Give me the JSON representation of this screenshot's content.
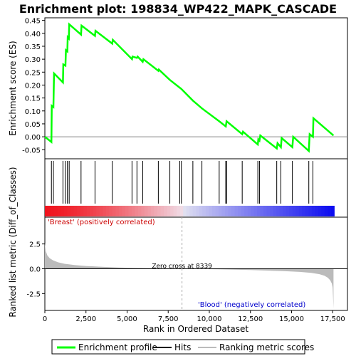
{
  "chart_data": {
    "type": "line",
    "title": "Enrichment plot: 198834_WP422_MAPK_CASCADE",
    "top_panel": {
      "ylabel": "Enrichment score (ES)",
      "yticks": [
        "0.45",
        "0.40",
        "0.35",
        "0.30",
        "0.25",
        "0.20",
        "0.15",
        "0.10",
        "0.05",
        "0.00",
        "-0.05"
      ],
      "ylim": [
        -0.085,
        0.46
      ],
      "series": [
        {
          "name": "Enrichment profile",
          "color": "#00ff00",
          "points": [
            [
              0,
              0.0
            ],
            [
              400,
              -0.02
            ],
            [
              420,
              0.12
            ],
            [
              520,
              0.115
            ],
            [
              560,
              0.245
            ],
            [
              1100,
              0.21
            ],
            [
              1120,
              0.28
            ],
            [
              1250,
              0.275
            ],
            [
              1280,
              0.335
            ],
            [
              1370,
              0.33
            ],
            [
              1390,
              0.385
            ],
            [
              1460,
              0.38
            ],
            [
              1480,
              0.435
            ],
            [
              2200,
              0.395
            ],
            [
              2230,
              0.43
            ],
            [
              3050,
              0.39
            ],
            [
              3080,
              0.41
            ],
            [
              4100,
              0.36
            ],
            [
              4130,
              0.375
            ],
            [
              5300,
              0.3
            ],
            [
              5330,
              0.31
            ],
            [
              5600,
              0.305
            ],
            [
              5640,
              0.31
            ],
            [
              5950,
              0.29
            ],
            [
              5990,
              0.3
            ],
            [
              6900,
              0.255
            ],
            [
              6930,
              0.26
            ],
            [
              7600,
              0.22
            ],
            [
              8200,
              0.19
            ],
            [
              8300,
              0.185
            ],
            [
              9000,
              0.14
            ],
            [
              9550,
              0.11
            ],
            [
              10600,
              0.06
            ],
            [
              11000,
              0.04
            ],
            [
              11050,
              0.06
            ],
            [
              12000,
              0.01
            ],
            [
              12050,
              0.02
            ],
            [
              12950,
              -0.03
            ],
            [
              12980,
              -0.01
            ],
            [
              13050,
              -0.015
            ],
            [
              13100,
              0.005
            ],
            [
              14100,
              -0.045
            ],
            [
              14150,
              -0.025
            ],
            [
              14350,
              -0.04
            ],
            [
              14400,
              -0.005
            ],
            [
              15050,
              -0.04
            ],
            [
              15100,
              0.0
            ],
            [
              16050,
              -0.055
            ],
            [
              16100,
              0.01
            ],
            [
              16300,
              0.0
            ],
            [
              16330,
              0.072
            ],
            [
              17550,
              0.005
            ]
          ]
        }
      ]
    },
    "hits_panel": {
      "hit_positions": [
        400,
        520,
        1100,
        1250,
        1370,
        1480,
        2200,
        3050,
        4100,
        5300,
        5600,
        5950,
        6900,
        7600,
        8200,
        8300,
        9000,
        9550,
        10600,
        11000,
        11050,
        12000,
        12950,
        13050,
        14100,
        14350,
        15050,
        16050,
        16300
      ]
    },
    "bottom_panel": {
      "ylabel": "Ranked list metric (Diff_of_Classes)",
      "xlabel": "Rank in Ordered Dataset",
      "yticks": [
        "2.5",
        "0.0",
        "-2.5"
      ],
      "ylim": [
        -4.2,
        5.2
      ],
      "xticks": [
        "0",
        "2,500",
        "5,000",
        "7,500",
        "10,000",
        "12,500",
        "15,000",
        "17,500"
      ],
      "xlim": [
        0,
        18400
      ],
      "n_genes": 17600,
      "zero_cross": 8339,
      "zero_cross_label": "Zero cross at 8339",
      "positive_label": "'Breast' (positively correlated)",
      "negative_label": "'Blood' (negatively correlated)",
      "metric_curve": [
        [
          0,
          2.6
        ],
        [
          50,
          1.8
        ],
        [
          150,
          1.35
        ],
        [
          300,
          1.05
        ],
        [
          500,
          0.85
        ],
        [
          800,
          0.65
        ],
        [
          1200,
          0.5
        ],
        [
          1800,
          0.38
        ],
        [
          2500,
          0.28
        ],
        [
          3500,
          0.19
        ],
        [
          4500,
          0.13
        ],
        [
          5500,
          0.08
        ],
        [
          6500,
          0.05
        ],
        [
          7500,
          0.02
        ],
        [
          8339,
          0.0
        ],
        [
          9500,
          -0.03
        ],
        [
          10500,
          -0.06
        ],
        [
          11500,
          -0.09
        ],
        [
          12500,
          -0.13
        ],
        [
          13500,
          -0.18
        ],
        [
          14500,
          -0.24
        ],
        [
          15500,
          -0.32
        ],
        [
          16200,
          -0.42
        ],
        [
          16700,
          -0.55
        ],
        [
          17000,
          -0.7
        ],
        [
          17200,
          -0.9
        ],
        [
          17350,
          -1.15
        ],
        [
          17450,
          -1.5
        ],
        [
          17500,
          -1.9
        ],
        [
          17550,
          -4.0
        ]
      ]
    },
    "legend": {
      "items": [
        {
          "label": "Enrichment profile",
          "color": "#00ff00"
        },
        {
          "label": "Hits",
          "color": "#000000"
        },
        {
          "label": "Ranking metric scores",
          "color": "#bbbbbb"
        }
      ]
    }
  }
}
